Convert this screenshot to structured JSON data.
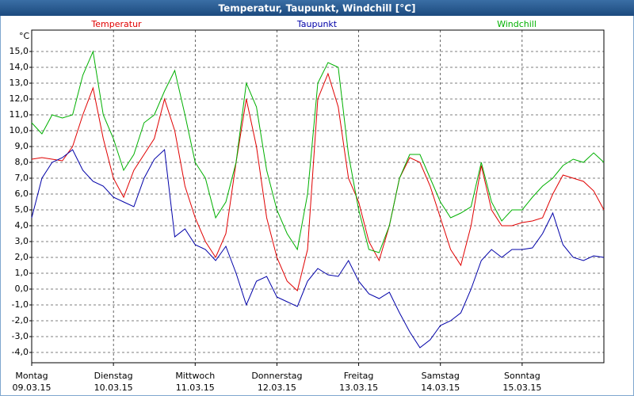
{
  "chart_data": {
    "type": "line",
    "title": "Temperatur, Taupunkt, Windchill [°C]",
    "y_unit": "°C",
    "xlim": [
      0,
      168
    ],
    "ylim": [
      -4.65,
      16.35
    ],
    "xticks": [
      {
        "value": 0,
        "label": "Montag",
        "date": "09.03.15"
      },
      {
        "value": 24,
        "label": "Dienstag",
        "date": "10.03.15"
      },
      {
        "value": 48,
        "label": "Mittwoch",
        "date": "11.03.15"
      },
      {
        "value": 72,
        "label": "Donnerstag",
        "date": "12.03.15"
      },
      {
        "value": 96,
        "label": "Freitag",
        "date": "13.03.15"
      },
      {
        "value": 120,
        "label": "Samstag",
        "date": "14.03.15"
      },
      {
        "value": 144,
        "label": "Sonntag",
        "date": "15.03.15"
      }
    ],
    "yticks": [
      {
        "value": -4,
        "label": "-4,0"
      },
      {
        "value": -3,
        "label": "-3,0"
      },
      {
        "value": -2,
        "label": "-2,0"
      },
      {
        "value": -1,
        "label": "-1,0"
      },
      {
        "value": 0,
        "label": "0,0"
      },
      {
        "value": 1,
        "label": "1,0"
      },
      {
        "value": 2,
        "label": "2,0"
      },
      {
        "value": 3,
        "label": "3,0"
      },
      {
        "value": 4,
        "label": "4,0"
      },
      {
        "value": 5,
        "label": "5,0"
      },
      {
        "value": 6,
        "label": "6,0"
      },
      {
        "value": 7,
        "label": "7,0"
      },
      {
        "value": 8,
        "label": "8,0"
      },
      {
        "value": 9,
        "label": "9,0"
      },
      {
        "value": 10,
        "label": "10,0"
      },
      {
        "value": 11,
        "label": "11,0"
      },
      {
        "value": 12,
        "label": "12,0"
      },
      {
        "value": 13,
        "label": "13,0"
      },
      {
        "value": 14,
        "label": "14,0"
      },
      {
        "value": 15,
        "label": "15,0"
      }
    ],
    "grid": true,
    "x": [
      0,
      3,
      6,
      9,
      12,
      15,
      18,
      21,
      24,
      27,
      30,
      33,
      36,
      39,
      42,
      45,
      48,
      51,
      54,
      57,
      60,
      63,
      66,
      69,
      72,
      75,
      78,
      81,
      84,
      87,
      90,
      93,
      96,
      99,
      102,
      105,
      108,
      111,
      114,
      117,
      120,
      123,
      126,
      129,
      132,
      135,
      138,
      141,
      144,
      147,
      150,
      153,
      156,
      159,
      162,
      165,
      168
    ],
    "series": [
      {
        "name": "Temperatur",
        "color": "#e00000",
        "values": [
          8.2,
          8.3,
          8.2,
          8.1,
          9.0,
          11.0,
          12.7,
          9.5,
          7.0,
          5.8,
          7.5,
          8.5,
          9.5,
          12.0,
          10.0,
          6.5,
          4.5,
          3.0,
          2.0,
          3.5,
          8.0,
          12.0,
          9.0,
          4.5,
          2.0,
          0.5,
          -0.1,
          2.5,
          12.0,
          13.6,
          11.5,
          7.0,
          5.5,
          3.0,
          1.8,
          4.0,
          7.0,
          8.3,
          8.0,
          6.5,
          4.5,
          2.5,
          1.5,
          4.0,
          7.8,
          5.0,
          4.0,
          4.0,
          4.2,
          4.3,
          4.5,
          6.0,
          7.2,
          7.0,
          6.8,
          6.2,
          5.0
        ]
      },
      {
        "name": "Taupunkt",
        "color": "#0000a8",
        "values": [
          4.5,
          7.0,
          8.0,
          8.3,
          8.8,
          7.5,
          6.8,
          6.5,
          5.8,
          5.5,
          5.2,
          7.0,
          8.2,
          8.8,
          3.3,
          3.8,
          2.8,
          2.5,
          1.8,
          2.7,
          1.0,
          -1.0,
          0.5,
          0.8,
          -0.5,
          -0.8,
          -1.1,
          0.5,
          1.3,
          0.9,
          0.8,
          1.8,
          0.5,
          -0.3,
          -0.6,
          -0.2,
          -1.5,
          -2.7,
          -3.7,
          -3.2,
          -2.3,
          -2.0,
          -1.5,
          0.0,
          1.8,
          2.5,
          2.0,
          2.5,
          2.5,
          2.6,
          3.5,
          4.8,
          2.8,
          2.0,
          1.8,
          2.1,
          2.0
        ]
      },
      {
        "name": "Windchill",
        "color": "#00b000",
        "values": [
          10.5,
          9.8,
          11.0,
          10.8,
          11.0,
          13.5,
          15.0,
          11.0,
          9.5,
          7.5,
          8.5,
          10.5,
          11.0,
          12.5,
          13.8,
          11.0,
          8.0,
          7.0,
          4.5,
          5.5,
          8.0,
          13.0,
          11.5,
          7.5,
          5.0,
          3.5,
          2.5,
          6.0,
          13.0,
          14.3,
          14.0,
          8.5,
          5.0,
          2.5,
          2.3,
          4.0,
          7.0,
          8.5,
          8.5,
          7.0,
          5.5,
          4.5,
          4.8,
          5.2,
          8.0,
          5.5,
          4.3,
          5.0,
          5.0,
          5.8,
          6.5,
          7.0,
          7.8,
          8.2,
          8.0,
          8.6,
          8.0
        ]
      }
    ]
  }
}
